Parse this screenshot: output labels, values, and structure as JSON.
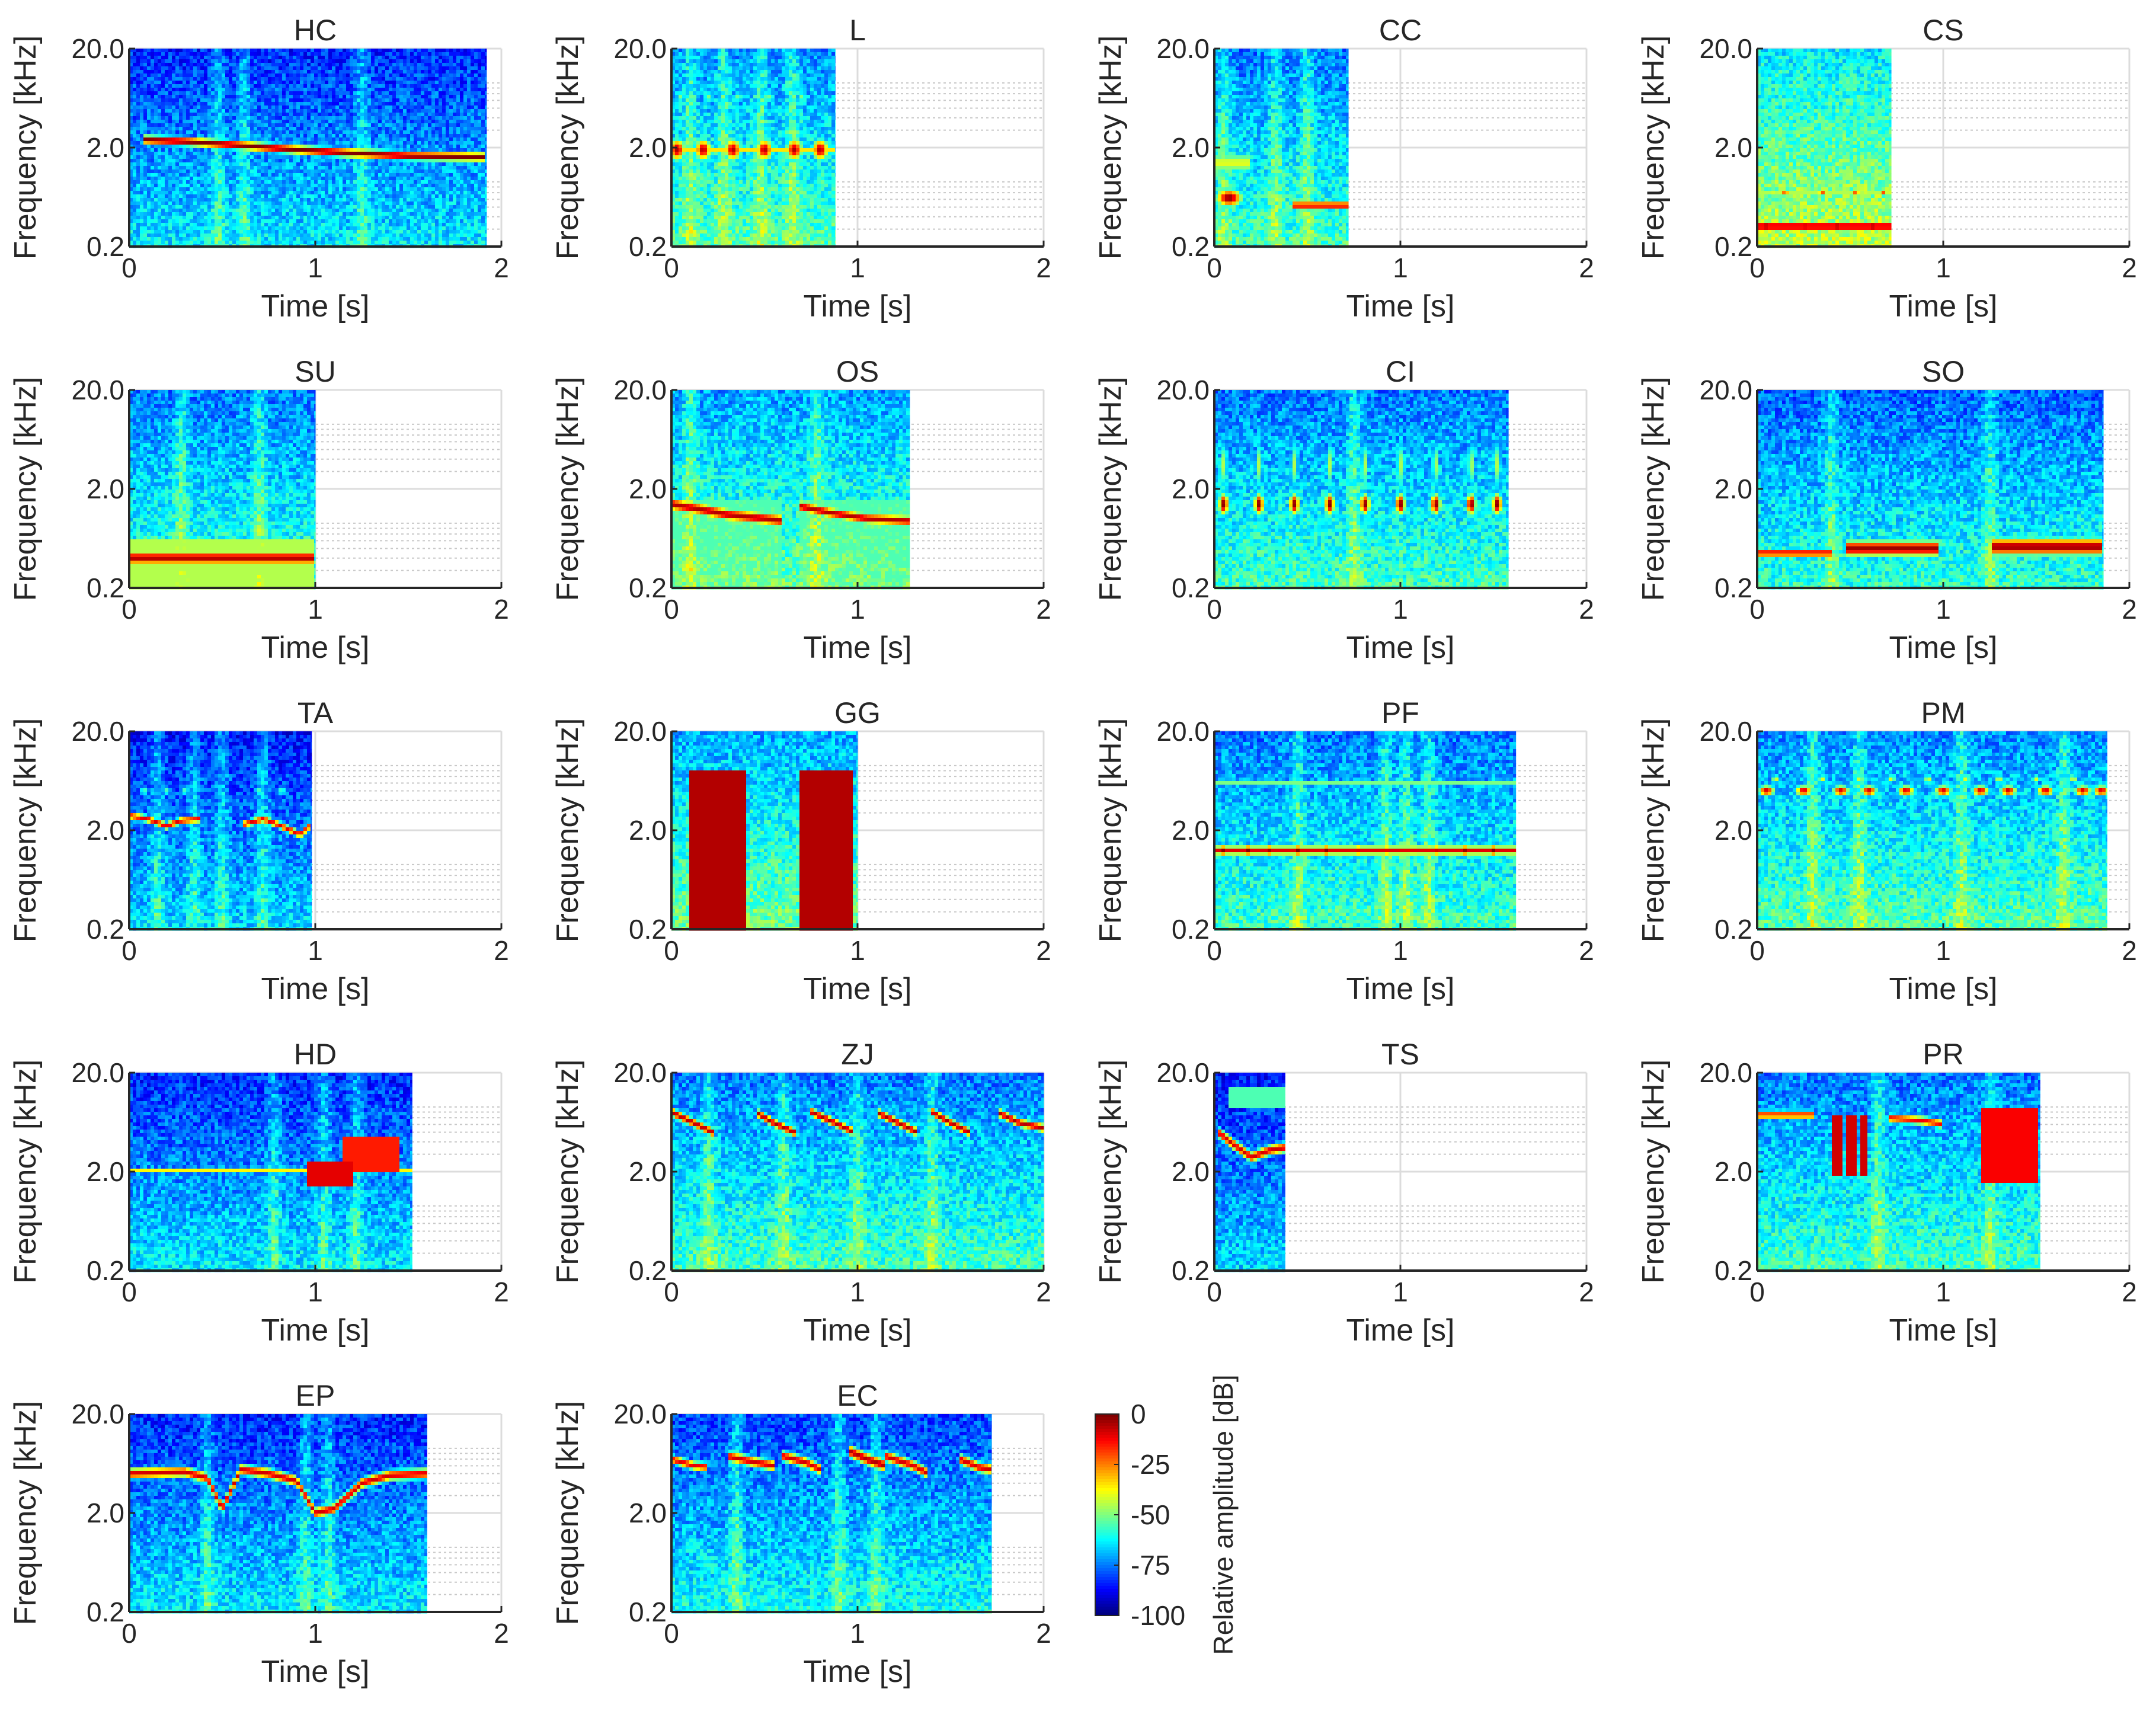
{
  "chart_data": {
    "type": "heatmap",
    "description_units": {
      "x": "seconds",
      "y": "kHz (log scale)",
      "z": "dB"
    },
    "shared": {
      "xlabel": "Time [s]",
      "ylabel": "Frequency [kHz]",
      "xlim": [
        0,
        2
      ],
      "xticks": [
        0,
        1,
        2
      ],
      "ylim": [
        0.2,
        20.0
      ],
      "yticks": [
        0.2,
        2.0,
        20.0
      ],
      "ytick_labels": [
        "0.2",
        "2.0",
        "20.0"
      ],
      "yscale": "log",
      "grid": true
    },
    "panels": [
      {
        "title": "HC",
        "duration": 1.92,
        "noise": 0.22,
        "vstripes": [
          0.48,
          0.62,
          1.25
        ],
        "features": [
          {
            "kind": "line",
            "t": [
              0.08,
              0.3,
              0.6,
              0.9,
              1.2,
              1.5,
              1.92
            ],
            "f": [
              2.4,
              2.3,
              2.1,
              1.9,
              1.75,
              1.65,
              1.6
            ],
            "w": 0.05,
            "amp": 1.0
          }
        ]
      },
      {
        "title": "L",
        "duration": 0.88,
        "noise": 0.32,
        "vstripes": [
          0.1,
          0.28,
          0.48,
          0.65
        ],
        "features": [
          {
            "kind": "blobs",
            "t": [
              0.03,
              0.17,
              0.33,
              0.5,
              0.66,
              0.8
            ],
            "f": 1.9,
            "dur": 0.05,
            "w": 0.12,
            "amp": 0.95
          },
          {
            "kind": "blobs",
            "t": [
              0.05,
              0.2,
              0.36,
              0.53,
              0.7
            ],
            "f": 6.5,
            "dur": 0.03,
            "w": 0.07,
            "amp": 0.5
          },
          {
            "kind": "hline",
            "t0": 0.0,
            "t1": 0.88,
            "f": 1.9,
            "w": 0.04,
            "amp": 0.65
          }
        ]
      },
      {
        "title": "CC",
        "duration": 0.72,
        "noise": 0.3,
        "vstripes": [
          0.05,
          0.33,
          0.5
        ],
        "features": [
          {
            "kind": "blobs",
            "t": [
              0.08
            ],
            "f": 0.62,
            "dur": 0.08,
            "w": 0.1,
            "amp": 1.0
          },
          {
            "kind": "hline",
            "t0": 0.0,
            "t1": 0.2,
            "f": 1.4,
            "w": 0.12,
            "amp": 0.6
          },
          {
            "kind": "hline",
            "t0": 0.42,
            "t1": 0.72,
            "f": 0.52,
            "w": 0.05,
            "amp": 0.9
          }
        ]
      },
      {
        "title": "CS",
        "duration": 0.72,
        "noise": 0.42,
        "vstripes": [],
        "features": [
          {
            "kind": "hline",
            "t0": 0.0,
            "t1": 0.72,
            "f": 0.32,
            "w": 0.06,
            "amp": 0.95
          },
          {
            "kind": "blobs",
            "t": [
              0.05,
              0.25,
              0.43,
              0.62
            ],
            "f": 0.32,
            "dur": 0.05,
            "w": 0.06,
            "amp": 1.0
          },
          {
            "kind": "hline",
            "t0": 0.0,
            "t1": 0.72,
            "f": 0.7,
            "w": 0.05,
            "amp": 0.55
          },
          {
            "kind": "blobs",
            "t": [
              0.15,
              0.35,
              0.53,
              0.68
            ],
            "f": 0.7,
            "dur": 0.03,
            "w": 0.04,
            "amp": 0.8
          }
        ]
      },
      {
        "title": "SU",
        "duration": 1.0,
        "noise": 0.3,
        "vstripes": [
          0.28,
          0.7
        ],
        "features": [
          {
            "kind": "hline",
            "t0": 0.0,
            "t1": 1.0,
            "f": 0.4,
            "w": 0.08,
            "amp": 0.95
          },
          {
            "kind": "band",
            "t0": 0.0,
            "t1": 1.0,
            "flo": 0.2,
            "fhi": 0.6,
            "amp": 0.55
          }
        ]
      },
      {
        "title": "OS",
        "duration": 1.28,
        "noise": 0.34,
        "vstripes": [
          0.1,
          0.78
        ],
        "features": [
          {
            "kind": "line",
            "t": [
              0.0,
              0.15,
              0.3,
              0.5,
              0.6
            ],
            "f": [
              1.4,
              1.25,
              1.1,
              1.0,
              0.95
            ],
            "w": 0.07,
            "amp": 0.95
          },
          {
            "kind": "line",
            "t": [
              0.68,
              0.85,
              1.05,
              1.28
            ],
            "f": [
              1.35,
              1.15,
              1.0,
              0.95
            ],
            "w": 0.06,
            "amp": 0.95
          },
          {
            "kind": "line",
            "t": [
              0.0,
              0.3,
              0.6
            ],
            "f": [
              3.4,
              2.6,
              2.2
            ],
            "w": 0.03,
            "amp": 0.45
          },
          {
            "kind": "band",
            "t0": 0.0,
            "t1": 0.6,
            "flo": 0.2,
            "fhi": 1.5,
            "amp": 0.45
          },
          {
            "kind": "band",
            "t0": 0.68,
            "t1": 1.28,
            "flo": 0.2,
            "fhi": 1.5,
            "amp": 0.45
          }
        ]
      },
      {
        "title": "CI",
        "duration": 1.58,
        "noise": 0.3,
        "vstripes": [
          0.75
        ],
        "features": [
          {
            "kind": "blobs",
            "t": [
              0.05,
              0.24,
              0.43,
              0.62,
              0.81,
              1.0,
              1.19,
              1.38,
              1.52
            ],
            "f": 1.4,
            "dur": 0.03,
            "w": 0.12,
            "amp": 1.0
          },
          {
            "kind": "blobs",
            "t": [
              0.05,
              0.24,
              0.43,
              0.62,
              0.81,
              1.0,
              1.19,
              1.38,
              1.52
            ],
            "f": 3.5,
            "dur": 0.025,
            "w": 0.28,
            "amp": 0.55
          }
        ]
      },
      {
        "title": "SO",
        "duration": 1.86,
        "noise": 0.28,
        "vstripes": [
          0.4,
          1.25
        ],
        "features": [
          {
            "kind": "hline",
            "t0": 0.0,
            "t1": 0.4,
            "f": 0.45,
            "w": 0.05,
            "amp": 0.9
          },
          {
            "kind": "hline",
            "t0": 0.48,
            "t1": 0.98,
            "f": 0.5,
            "w": 0.09,
            "amp": 0.97
          },
          {
            "kind": "hline",
            "t0": 1.26,
            "t1": 1.86,
            "f": 0.52,
            "w": 0.1,
            "amp": 0.97
          }
        ]
      },
      {
        "title": "TA",
        "duration": 0.98,
        "noise": 0.2,
        "vstripes": [
          0.15,
          0.35,
          0.5,
          0.72
        ],
        "features": [
          {
            "kind": "line",
            "t": [
              0.0,
              0.1,
              0.2,
              0.28,
              0.38
            ],
            "f": [
              2.8,
              2.6,
              2.2,
              2.5,
              2.6
            ],
            "w": 0.04,
            "amp": 0.9
          },
          {
            "kind": "line",
            "t": [
              0.62,
              0.72,
              0.82,
              0.92,
              0.98
            ],
            "f": [
              2.3,
              2.6,
              2.2,
              1.8,
              2.3
            ],
            "w": 0.04,
            "amp": 0.9
          },
          {
            "kind": "blobs",
            "t": [
              0.08,
              0.2,
              0.3,
              0.7,
              0.82
            ],
            "f": 5.0,
            "dur": 0.03,
            "w": 0.06,
            "amp": 0.45
          }
        ]
      },
      {
        "title": "GG",
        "duration": 1.0,
        "noise": 0.35,
        "vstripes": [],
        "features": [
          {
            "kind": "band",
            "t0": 0.1,
            "t1": 0.4,
            "flo": 0.2,
            "fhi": 8.0,
            "amp": 0.95
          },
          {
            "kind": "band",
            "t0": 0.68,
            "t1": 0.98,
            "flo": 0.2,
            "fhi": 8.0,
            "amp": 0.95
          }
        ]
      },
      {
        "title": "PF",
        "duration": 1.62,
        "noise": 0.3,
        "vstripes": [
          0.45,
          0.92,
          1.03,
          1.15
        ],
        "features": [
          {
            "kind": "hline",
            "t0": 0.0,
            "t1": 1.62,
            "f": 1.25,
            "w": 0.05,
            "amp": 0.9
          },
          {
            "kind": "blobs",
            "t": [
              0.05,
              0.18,
              0.3,
              0.45,
              0.6,
              0.78,
              0.92,
              1.07,
              1.2,
              1.35,
              1.5
            ],
            "f": 1.25,
            "dur": 0.02,
            "w": 0.06,
            "amp": 1.0
          },
          {
            "kind": "hline",
            "t0": 0.0,
            "t1": 1.62,
            "f": 3.0,
            "w": 0.02,
            "amp": 0.55
          },
          {
            "kind": "hline",
            "t0": 0.0,
            "t1": 1.62,
            "f": 6.0,
            "w": 0.02,
            "amp": 0.5
          }
        ]
      },
      {
        "title": "PM",
        "duration": 1.88,
        "noise": 0.32,
        "vstripes": [
          0.3,
          0.55,
          1.1,
          1.65
        ],
        "features": [
          {
            "kind": "blobs",
            "t": [
              0.05,
              0.25,
              0.45,
              0.6,
              0.8,
              1.0,
              1.2,
              1.35,
              1.55,
              1.75,
              1.85
            ],
            "f": 5.0,
            "dur": 0.05,
            "w": 0.06,
            "amp": 0.92
          },
          {
            "kind": "blobs",
            "t": [
              0.1,
              0.35,
              0.55,
              0.72,
              0.92,
              1.12,
              1.3,
              1.5,
              1.7
            ],
            "f": 6.6,
            "dur": 0.03,
            "w": 0.05,
            "amp": 0.6
          }
        ]
      },
      {
        "title": "HD",
        "duration": 1.52,
        "noise": 0.22,
        "vstripes": [
          0.78,
          1.05,
          1.22
        ],
        "features": [
          {
            "kind": "hline",
            "t0": 0.0,
            "t1": 1.52,
            "f": 2.0,
            "w": 0.02,
            "amp": 0.9
          },
          {
            "kind": "band",
            "t0": 0.95,
            "t1": 1.2,
            "flo": 1.4,
            "fhi": 2.6,
            "amp": 0.9
          },
          {
            "kind": "band",
            "t0": 1.15,
            "t1": 1.45,
            "flo": 2.0,
            "fhi": 4.5,
            "amp": 0.85
          }
        ]
      },
      {
        "title": "ZJ",
        "duration": 2.0,
        "noise": 0.3,
        "vstripes": [
          0.2,
          0.6,
          1.0,
          1.4
        ],
        "features": [
          {
            "kind": "line",
            "t": [
              0.0,
              0.12,
              0.22
            ],
            "f": [
              8.0,
              6.2,
              5.0
            ],
            "w": 0.05,
            "amp": 0.95
          },
          {
            "kind": "line",
            "t": [
              0.45,
              0.55,
              0.66
            ],
            "f": [
              8.0,
              6.2,
              5.0
            ],
            "w": 0.05,
            "amp": 0.95
          },
          {
            "kind": "line",
            "t": [
              0.75,
              0.88,
              0.98
            ],
            "f": [
              8.0,
              6.2,
              5.0
            ],
            "w": 0.05,
            "amp": 0.95
          },
          {
            "kind": "line",
            "t": [
              1.1,
              1.22,
              1.32
            ],
            "f": [
              8.0,
              6.2,
              5.0
            ],
            "w": 0.05,
            "amp": 0.95
          },
          {
            "kind": "line",
            "t": [
              1.4,
              1.5,
              1.6
            ],
            "f": [
              8.0,
              6.2,
              5.0
            ],
            "w": 0.05,
            "amp": 0.95
          },
          {
            "kind": "line",
            "t": [
              1.75,
              1.87,
              2.0
            ],
            "f": [
              8.0,
              6.2,
              5.5
            ],
            "w": 0.05,
            "amp": 0.95
          }
        ]
      },
      {
        "title": "TS",
        "duration": 0.38,
        "noise": 0.2,
        "vstripes": [],
        "features": [
          {
            "kind": "line",
            "t": [
              0.02,
              0.1,
              0.2,
              0.3,
              0.38
            ],
            "f": [
              5.0,
              3.8,
              2.8,
              3.3,
              3.5
            ],
            "w": 0.06,
            "amp": 0.92
          },
          {
            "kind": "band",
            "t0": 0.08,
            "t1": 0.38,
            "flo": 9.0,
            "fhi": 14.0,
            "amp": 0.45
          }
        ]
      },
      {
        "title": "PR",
        "duration": 1.52,
        "noise": 0.3,
        "vstripes": [
          0.65,
          1.25
        ],
        "features": [
          {
            "kind": "hline",
            "t0": 0.0,
            "t1": 0.3,
            "f": 7.5,
            "w": 0.05,
            "amp": 0.85
          },
          {
            "kind": "band",
            "t0": 0.4,
            "t1": 0.45,
            "flo": 1.8,
            "fhi": 7.5,
            "amp": 0.92
          },
          {
            "kind": "band",
            "t0": 0.48,
            "t1": 0.53,
            "flo": 1.8,
            "fhi": 7.5,
            "amp": 0.92
          },
          {
            "kind": "band",
            "t0": 0.56,
            "t1": 0.6,
            "flo": 1.8,
            "fhi": 7.5,
            "amp": 0.92
          },
          {
            "kind": "line",
            "t": [
              0.7,
              0.9,
              1.0
            ],
            "f": [
              7.0,
              6.5,
              6.0
            ],
            "w": 0.05,
            "amp": 0.88
          },
          {
            "kind": "band",
            "t0": 1.2,
            "t1": 1.5,
            "flo": 1.5,
            "fhi": 9.0,
            "amp": 0.88
          }
        ]
      },
      {
        "title": "EP",
        "duration": 1.6,
        "noise": 0.22,
        "vstripes": [
          0.42,
          0.95,
          1.07
        ],
        "features": [
          {
            "kind": "line",
            "t": [
              0.0,
              0.3,
              0.42,
              0.5,
              0.6,
              0.75,
              0.9,
              1.0,
              1.1,
              1.25,
              1.4,
              1.6
            ],
            "f": [
              5.0,
              5.2,
              4.5,
              2.2,
              5.5,
              5.0,
              4.2,
              2.0,
              2.2,
              4.0,
              4.8,
              5.0
            ],
            "w": 0.06,
            "amp": 0.92
          }
        ]
      },
      {
        "title": "EC",
        "duration": 1.72,
        "noise": 0.25,
        "vstripes": [
          0.35,
          0.9,
          1.1
        ],
        "features": [
          {
            "kind": "line",
            "t": [
              0.0,
              0.12,
              0.2
            ],
            "f": [
              7.0,
              6.0,
              5.8
            ],
            "w": 0.05,
            "amp": 0.9
          },
          {
            "kind": "line",
            "t": [
              0.3,
              0.45,
              0.55
            ],
            "f": [
              7.5,
              6.5,
              6.0
            ],
            "w": 0.06,
            "amp": 0.92
          },
          {
            "kind": "line",
            "t": [
              0.6,
              0.72,
              0.8
            ],
            "f": [
              7.5,
              6.5,
              5.5
            ],
            "w": 0.06,
            "amp": 0.92
          },
          {
            "kind": "line",
            "t": [
              0.95,
              1.05,
              1.15
            ],
            "f": [
              8.5,
              7.0,
              6.0
            ],
            "w": 0.07,
            "amp": 0.95
          },
          {
            "kind": "line",
            "t": [
              1.15,
              1.3,
              1.38
            ],
            "f": [
              7.5,
              6.0,
              5.0
            ],
            "w": 0.06,
            "amp": 0.92
          },
          {
            "kind": "line",
            "t": [
              1.55,
              1.65,
              1.72
            ],
            "f": [
              7.0,
              5.8,
              5.5
            ],
            "w": 0.06,
            "amp": 0.92
          }
        ]
      }
    ],
    "colorbar": {
      "label": "Relative amplitude [dB]",
      "range": [
        -100,
        0
      ],
      "ticks": [
        0,
        -25,
        -50,
        -75,
        -100
      ],
      "colormap": "jet"
    }
  }
}
